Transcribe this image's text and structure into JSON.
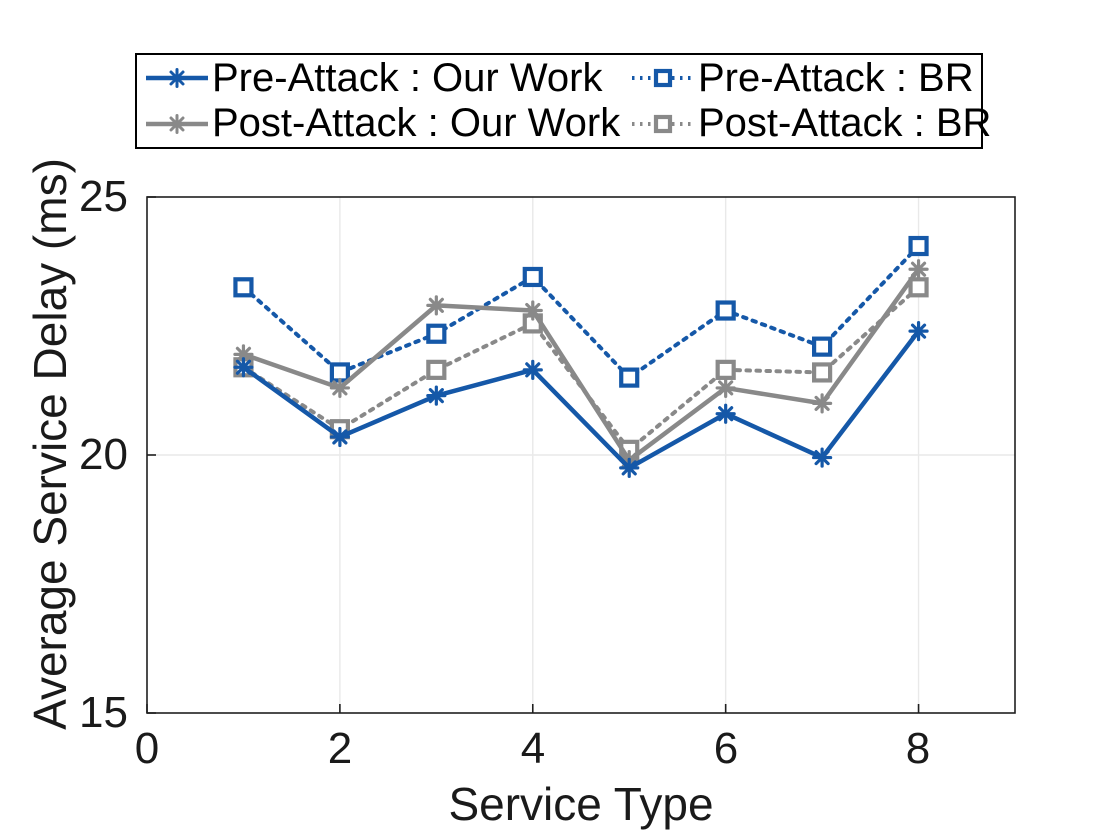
{
  "figure": {
    "background": "#ffffff",
    "axis_color": "#1f1f1f",
    "grid_color": "#e9e9e9",
    "text_color": "#1a1a1a"
  },
  "chart_data": {
    "type": "line",
    "title": "",
    "xlabel": "Service Type",
    "ylabel": "Average Service Delay (ms)",
    "xlim": [
      0,
      9
    ],
    "ylim": [
      15,
      25
    ],
    "xticks": [
      0,
      2,
      4,
      6,
      8
    ],
    "yticks": [
      15,
      20,
      25
    ],
    "grid": true,
    "legend_position": "top-outside-2col",
    "x": [
      1,
      2,
      3,
      4,
      5,
      6,
      7,
      8
    ],
    "series": [
      {
        "name": "Pre-Attack : Our Work",
        "color": "#1558a8",
        "line_style": "solid",
        "marker": "asterisk",
        "values": [
          21.7,
          20.35,
          21.15,
          21.65,
          19.75,
          20.8,
          19.95,
          22.4
        ]
      },
      {
        "name": "Post-Attack : Our Work",
        "color": "#898989",
        "line_style": "solid",
        "marker": "asterisk",
        "values": [
          21.95,
          21.3,
          22.9,
          22.8,
          19.9,
          21.3,
          21.0,
          23.6
        ]
      },
      {
        "name": "Pre-Attack : BR",
        "color": "#1558a8",
        "line_style": "dotted",
        "marker": "square",
        "values": [
          23.25,
          21.6,
          22.35,
          23.45,
          21.5,
          22.8,
          22.1,
          24.05
        ]
      },
      {
        "name": "Post-Attack : BR",
        "color": "#898989",
        "line_style": "dotted",
        "marker": "square",
        "values": [
          21.7,
          20.5,
          21.65,
          22.55,
          20.1,
          21.65,
          21.6,
          23.25
        ]
      }
    ]
  }
}
